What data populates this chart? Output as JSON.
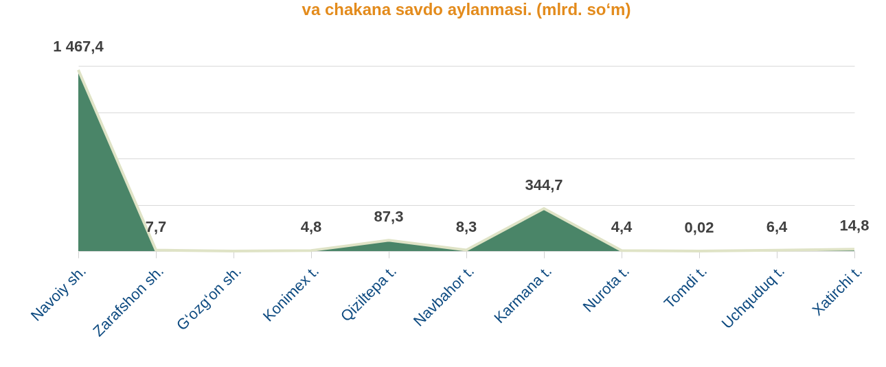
{
  "chart_data": {
    "type": "area",
    "title": "va chakana savdo aylanmasi. (mlrd. so‘m)",
    "categories": [
      "Navoiy sh.",
      "Zarafshon sh.",
      "G‘ozg‘on sh.",
      "Konimex t.",
      "Qiziltepa t.",
      "Navbahor t.",
      "Karmana t.",
      "Nurota t.",
      "Tomdi t.",
      "Uchquduq t.",
      "Xatirchi t."
    ],
    "series": [
      {
        "color": "#4a8568",
        "values": [
          1467.4,
          7.7,
          0,
          4.8,
          87.3,
          8.3,
          344.7,
          4.4,
          0.02,
          6.4,
          14.8
        ],
        "value_labels": [
          "1 467,4",
          "7,7",
          null,
          "4,8",
          "87,3",
          "8,3",
          "344,7",
          "4,4",
          "0,02",
          "6,4",
          "14,8"
        ]
      }
    ],
    "ylim": [
      0,
      1500
    ],
    "yticks": [
      {
        "value": 0,
        "label": null
      },
      {
        "value": 375,
        "label": null
      },
      {
        "value": 750,
        "label": null
      },
      {
        "value": 1125,
        "label": null
      },
      {
        "value": 1500,
        "label": null
      }
    ],
    "grid": "y",
    "tick_labels": "x"
  }
}
